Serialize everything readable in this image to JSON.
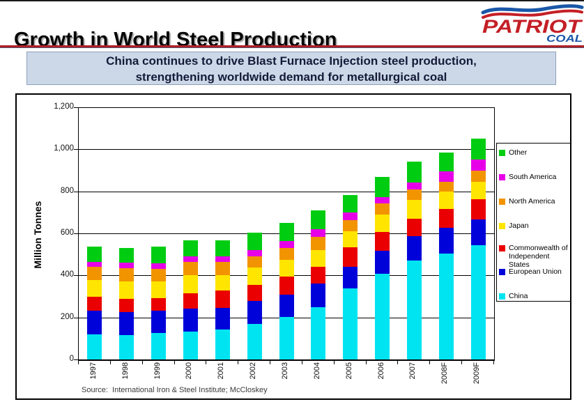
{
  "header": {
    "title": "Growth in World Steel Production"
  },
  "logo": {
    "brand": "PATRIOT",
    "sub": "COAL",
    "brand_color": "#c41f26",
    "sub_color": "#1a57a8"
  },
  "banner": {
    "line1": "China continues to drive Blast Furnace Injection steel production,",
    "line2": "strengthening worldwide demand for metallurgical coal",
    "bg_color": "#ccd8e8",
    "text_color": "#141a38"
  },
  "chart_data": {
    "type": "bar",
    "stacked": true,
    "ylabel": "Million Tonnes",
    "xlabel": "",
    "ylim": [
      0,
      1200
    ],
    "ytick_step": 200,
    "ytick_labels": [
      "0",
      "200",
      "400",
      "600",
      "800",
      "1,000",
      "1,200"
    ],
    "grid": true,
    "legend_position": "right",
    "x_label_rotation": -90,
    "categories": [
      "1997",
      "1998",
      "1999",
      "2000",
      "2001",
      "2002",
      "2003",
      "2004",
      "2005",
      "2006",
      "2007",
      "2008F",
      "2009F"
    ],
    "series": [
      {
        "name": "China",
        "color": "#00e4f2",
        "values": [
          118,
          115,
          126,
          131,
          143,
          170,
          202,
          248,
          337,
          408,
          470,
          505,
          544
        ]
      },
      {
        "name": "European Union",
        "color": "#0003d9",
        "values": [
          114,
          112,
          106,
          110,
          103,
          110,
          106,
          114,
          105,
          108,
          118,
          120,
          121
        ]
      },
      {
        "name": "Commonwealth of Independent States",
        "color": "#ea0000",
        "values": [
          65,
          62,
          61,
          75,
          82,
          74,
          85,
          80,
          91,
          90,
          81,
          91,
          98
        ]
      },
      {
        "name": "Japan",
        "color": "#ffe500",
        "values": [
          81,
          84,
          77,
          85,
          73,
          85,
          80,
          78,
          77,
          82,
          90,
          82,
          83
        ]
      },
      {
        "name": "North America",
        "color": "#f29400",
        "values": [
          62,
          62,
          62,
          63,
          62,
          51,
          59,
          64,
          53,
          53,
          49,
          48,
          52
        ]
      },
      {
        "name": "South America",
        "color": "#e700e7",
        "values": [
          24,
          25,
          27,
          26,
          28,
          30,
          33,
          35,
          36,
          33,
          35,
          50,
          55
        ]
      },
      {
        "name": "Other",
        "color": "#00cd12",
        "values": [
          73,
          72,
          77,
          77,
          77,
          83,
          85,
          90,
          85,
          96,
          97,
          89,
          97
        ]
      }
    ],
    "totals": [
      537,
      532,
      536,
      567,
      568,
      603,
      650,
      709,
      784,
      870,
      940,
      985,
      1050
    ],
    "source": "Source:  International Iron & Steel Institute; McCloskey"
  }
}
